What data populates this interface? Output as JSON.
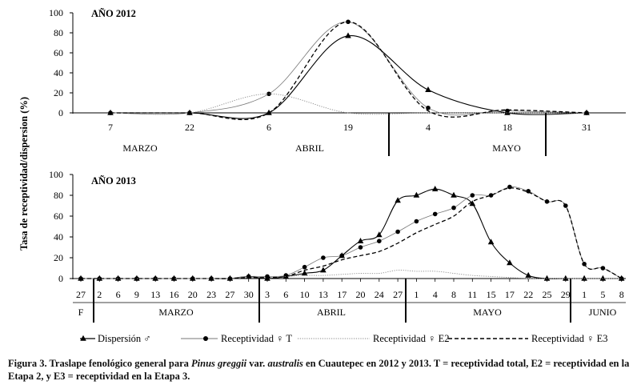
{
  "ylabel": "Tasa de receptividad/dispersion (%)",
  "caption": {
    "lead": "Figura 3. Traslape fenológico general para ",
    "species": "Pinus greggii",
    "after_species": " var. ",
    "variety": "australis",
    "rest": " en Cuautepec en 2012 y 2013. T = receptividad total, E2 = receptividad en la Etapa 2, y E3 = receptividad en la Etapa 3."
  },
  "legend": [
    {
      "label": "Dispersión ♂",
      "style": "solid-triangle"
    },
    {
      "label": "Receptividad ♀ T",
      "style": "solid-circle"
    },
    {
      "label": "Receptividad ♀ E2",
      "style": "dotted"
    },
    {
      "label": "Receptividad ♀ E3",
      "style": "dashed"
    }
  ],
  "colors": {
    "dispersion": "#000000",
    "total": "#000000",
    "e2": "#888888",
    "e3": "#000000"
  },
  "chart_data": [
    {
      "type": "line",
      "title": "AÑO 2012",
      "ylim": [
        0,
        100
      ],
      "yticks": [
        0,
        20,
        40,
        60,
        80,
        100
      ],
      "categories": [
        "7",
        "22",
        "6",
        "19",
        "4",
        "18",
        "31"
      ],
      "months": [
        "MARZO",
        "ABRIL",
        "MAYO"
      ],
      "series": [
        {
          "name": "Dispersión ♂",
          "values": [
            0,
            0,
            0,
            77,
            23,
            0,
            0
          ]
        },
        {
          "name": "Receptividad ♀ T",
          "values": [
            0,
            0,
            19,
            91,
            5,
            2,
            0
          ]
        },
        {
          "name": "Receptividad ♀ E2",
          "values": [
            0,
            0,
            19,
            0,
            0,
            0,
            0
          ]
        },
        {
          "name": "Receptividad ♀ E3",
          "values": [
            0,
            0,
            0,
            91,
            2,
            3,
            0
          ]
        }
      ]
    },
    {
      "type": "line",
      "title": "AÑO 2013",
      "ylim": [
        0,
        100
      ],
      "yticks": [
        0,
        20,
        40,
        60,
        80,
        100
      ],
      "categories": [
        "27",
        "2",
        "6",
        "9",
        "13",
        "16",
        "20",
        "23",
        "27",
        "30",
        "3",
        "6",
        "10",
        "13",
        "17",
        "20",
        "24",
        "27",
        "1",
        "4",
        "8",
        "11",
        "15",
        "17",
        "22",
        "25",
        "29",
        "1",
        "5",
        "8"
      ],
      "months": [
        "F",
        "MARZO",
        "ABRIL",
        "MAYO",
        "JUNIO"
      ],
      "series": [
        {
          "name": "Dispersión ♂",
          "values": [
            0,
            0,
            0,
            0,
            0,
            0,
            0,
            0,
            0,
            2,
            0,
            2,
            5,
            8,
            22,
            36,
            42,
            75,
            80,
            86,
            80,
            72,
            35,
            15,
            3,
            0,
            0,
            0,
            0,
            0
          ]
        },
        {
          "name": "Receptividad ♀ T",
          "values": [
            0,
            0,
            0,
            0,
            0,
            0,
            0,
            0,
            0,
            2,
            2,
            3,
            11,
            20,
            22,
            30,
            36,
            45,
            55,
            62,
            68,
            80,
            80,
            88,
            84,
            74,
            70,
            14,
            10,
            0
          ]
        },
        {
          "name": "Receptividad ♀ E2",
          "values": [
            0,
            0,
            0,
            0,
            0,
            0,
            0,
            0,
            0,
            1,
            1,
            2,
            3,
            3,
            4,
            5,
            5,
            8,
            7,
            7,
            5,
            3,
            2,
            1,
            0,
            0,
            0,
            0,
            0,
            0
          ]
        },
        {
          "name": "Receptividad ♀ E3",
          "values": [
            0,
            0,
            0,
            0,
            0,
            0,
            0,
            0,
            0,
            1,
            1,
            2,
            8,
            12,
            18,
            22,
            26,
            34,
            44,
            52,
            60,
            74,
            80,
            87,
            83,
            74,
            70,
            14,
            10,
            0
          ]
        }
      ]
    }
  ]
}
